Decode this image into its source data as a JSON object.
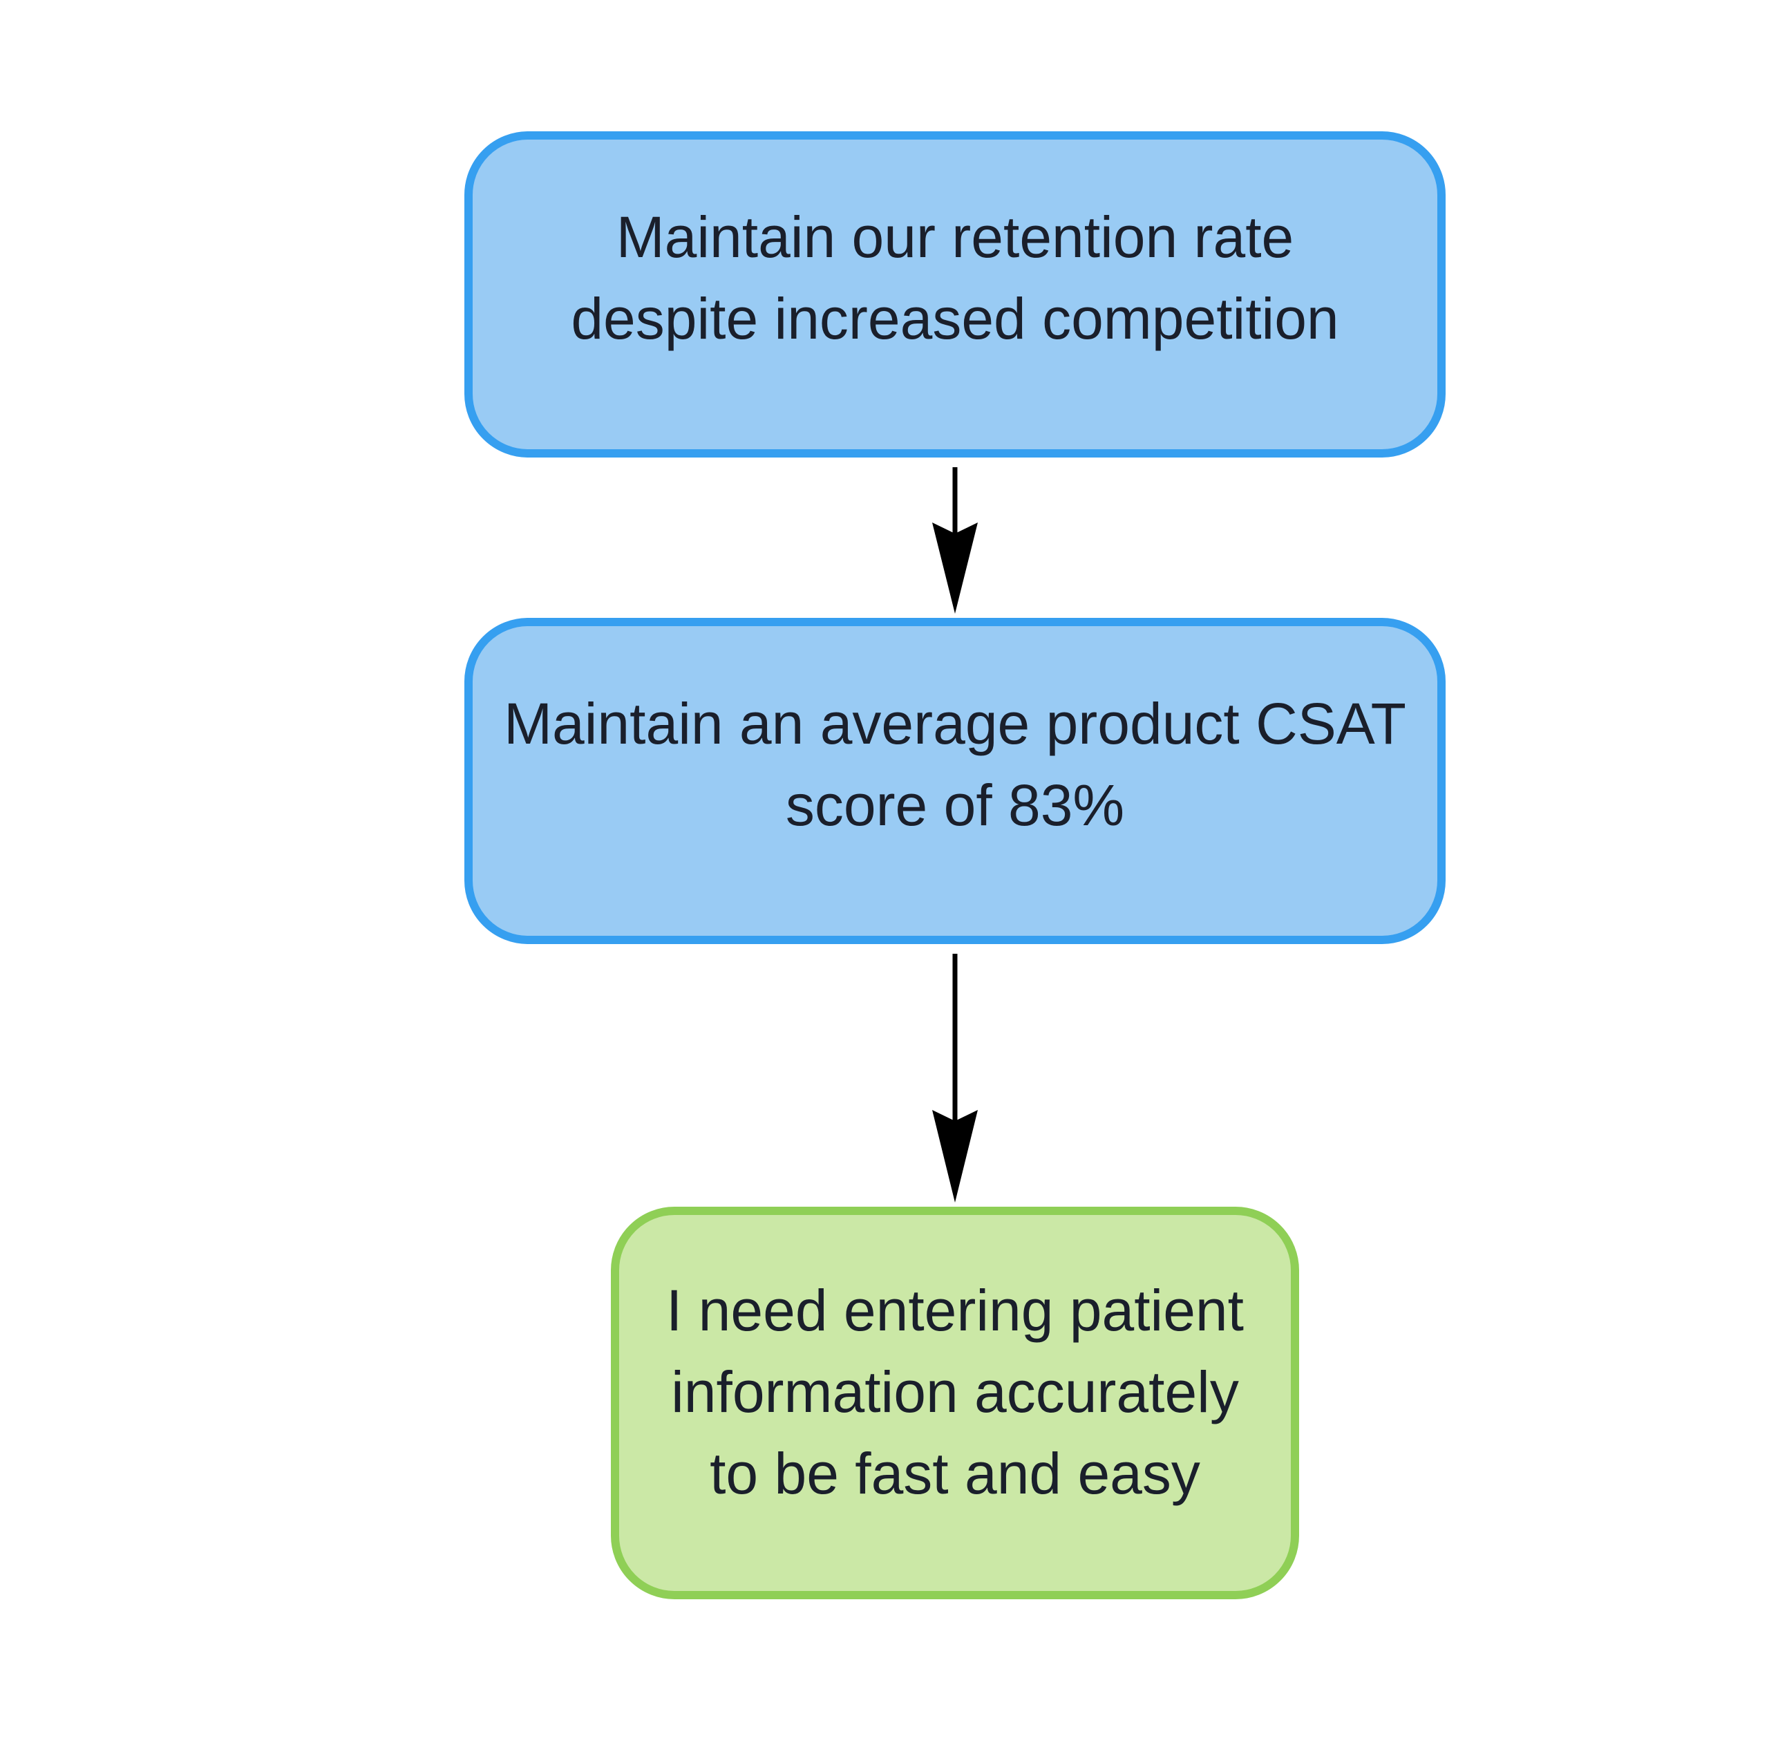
{
  "diagram": {
    "nodes": [
      {
        "id": "retention",
        "lines": [
          "Maintain our retention rate",
          "despite increased competition"
        ],
        "fill": "#99cbf4",
        "stroke": "#369ff0"
      },
      {
        "id": "csat",
        "lines": [
          "Maintain an average product CSAT",
          "score of 83%"
        ],
        "fill": "#99cbf4",
        "stroke": "#369ff0"
      },
      {
        "id": "need",
        "lines": [
          "I need entering patient",
          "information accurately",
          "to be fast and easy"
        ],
        "fill": "#cbe8a6",
        "stroke": "#8fcf56"
      }
    ],
    "edges": [
      {
        "from": "retention",
        "to": "csat",
        "color": "#000000"
      },
      {
        "from": "csat",
        "to": "need",
        "color": "#000000"
      }
    ]
  }
}
